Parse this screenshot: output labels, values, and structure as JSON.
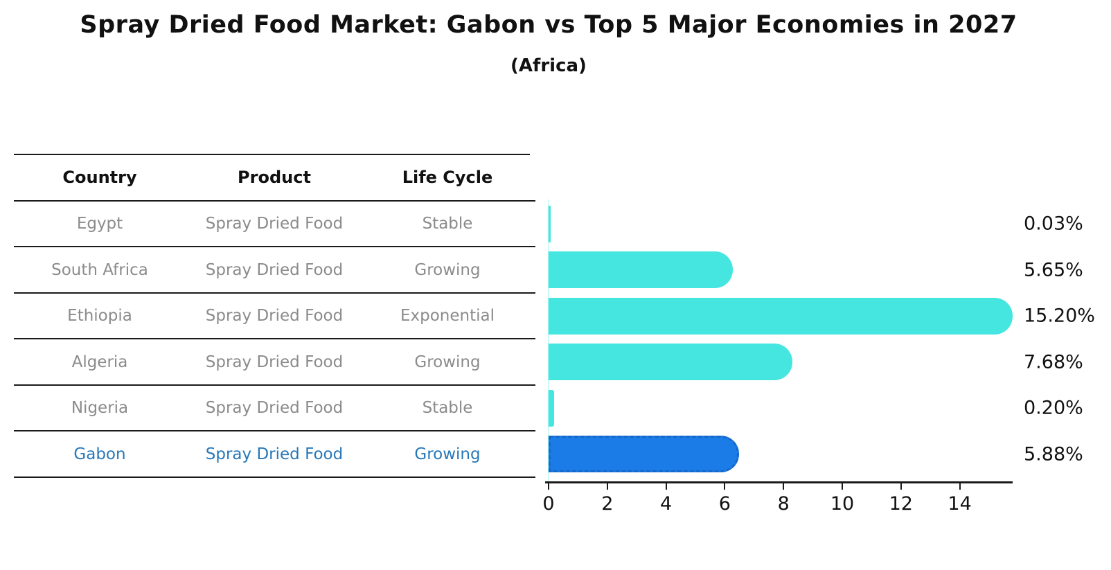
{
  "title": "Spray Dried Food Market: Gabon vs Top 5 Major Economies in 2027",
  "subtitle": "(Africa)",
  "colors": {
    "bar_default": "#45e6e0",
    "bar_highlight": "#1b7ce8",
    "bar_highlight_border": "#1668c9",
    "text_header": "#111111",
    "text_row": "#8b8b8b",
    "text_highlight": "#2878b9",
    "axis": "#1a1a1a"
  },
  "table": {
    "headers": [
      "Country",
      "Product",
      "Life Cycle"
    ],
    "rows": [
      {
        "country": "Egypt",
        "product": "Spray Dried Food",
        "life_cycle": "Stable",
        "value": 0.03,
        "value_label": "0.03%",
        "highlight": false
      },
      {
        "country": "South Africa",
        "product": "Spray Dried Food",
        "life_cycle": "Growing",
        "value": 5.65,
        "value_label": "5.65%",
        "highlight": false
      },
      {
        "country": "Ethiopia",
        "product": "Spray Dried Food",
        "life_cycle": "Exponential",
        "value": 15.2,
        "value_label": "15.20%",
        "highlight": false
      },
      {
        "country": "Algeria",
        "product": "Spray Dried Food",
        "life_cycle": "Growing",
        "value": 7.68,
        "value_label": "7.68%",
        "highlight": false
      },
      {
        "country": "Nigeria",
        "product": "Spray Dried Food",
        "life_cycle": "Stable",
        "value": 0.2,
        "value_label": "0.20%",
        "highlight": false
      },
      {
        "country": "Gabon",
        "product": "Spray Dried Food",
        "life_cycle": "Growing",
        "value": 5.88,
        "value_label": "5.88%",
        "highlight": true
      }
    ]
  },
  "axis": {
    "x_ticks": [
      "0",
      "2",
      "4",
      "6",
      "8",
      "10",
      "12",
      "14"
    ]
  },
  "chart_data": {
    "type": "bar",
    "orientation": "horizontal",
    "title": "Spray Dried Food Market: Gabon vs Top 5 Major Economies in 2027",
    "subtitle": "(Africa)",
    "categories": [
      "Egypt",
      "South Africa",
      "Ethiopia",
      "Algeria",
      "Nigeria",
      "Gabon"
    ],
    "values": [
      0.03,
      5.65,
      15.2,
      7.68,
      0.2,
      5.88
    ],
    "value_labels": [
      "0.03%",
      "5.65%",
      "15.20%",
      "7.68%",
      "0.20%",
      "5.88%"
    ],
    "series_meta": {
      "product": [
        "Spray Dried Food",
        "Spray Dried Food",
        "Spray Dried Food",
        "Spray Dried Food",
        "Spray Dried Food",
        "Spray Dried Food"
      ],
      "life_cycle": [
        "Stable",
        "Growing",
        "Exponential",
        "Growing",
        "Stable",
        "Growing"
      ]
    },
    "highlight_category": "Gabon",
    "xlabel": "",
    "ylabel": "",
    "xlim": [
      0,
      15.8
    ],
    "x_ticks": [
      0,
      2,
      4,
      6,
      8,
      10,
      12,
      14
    ],
    "grid": false,
    "legend": "none"
  }
}
